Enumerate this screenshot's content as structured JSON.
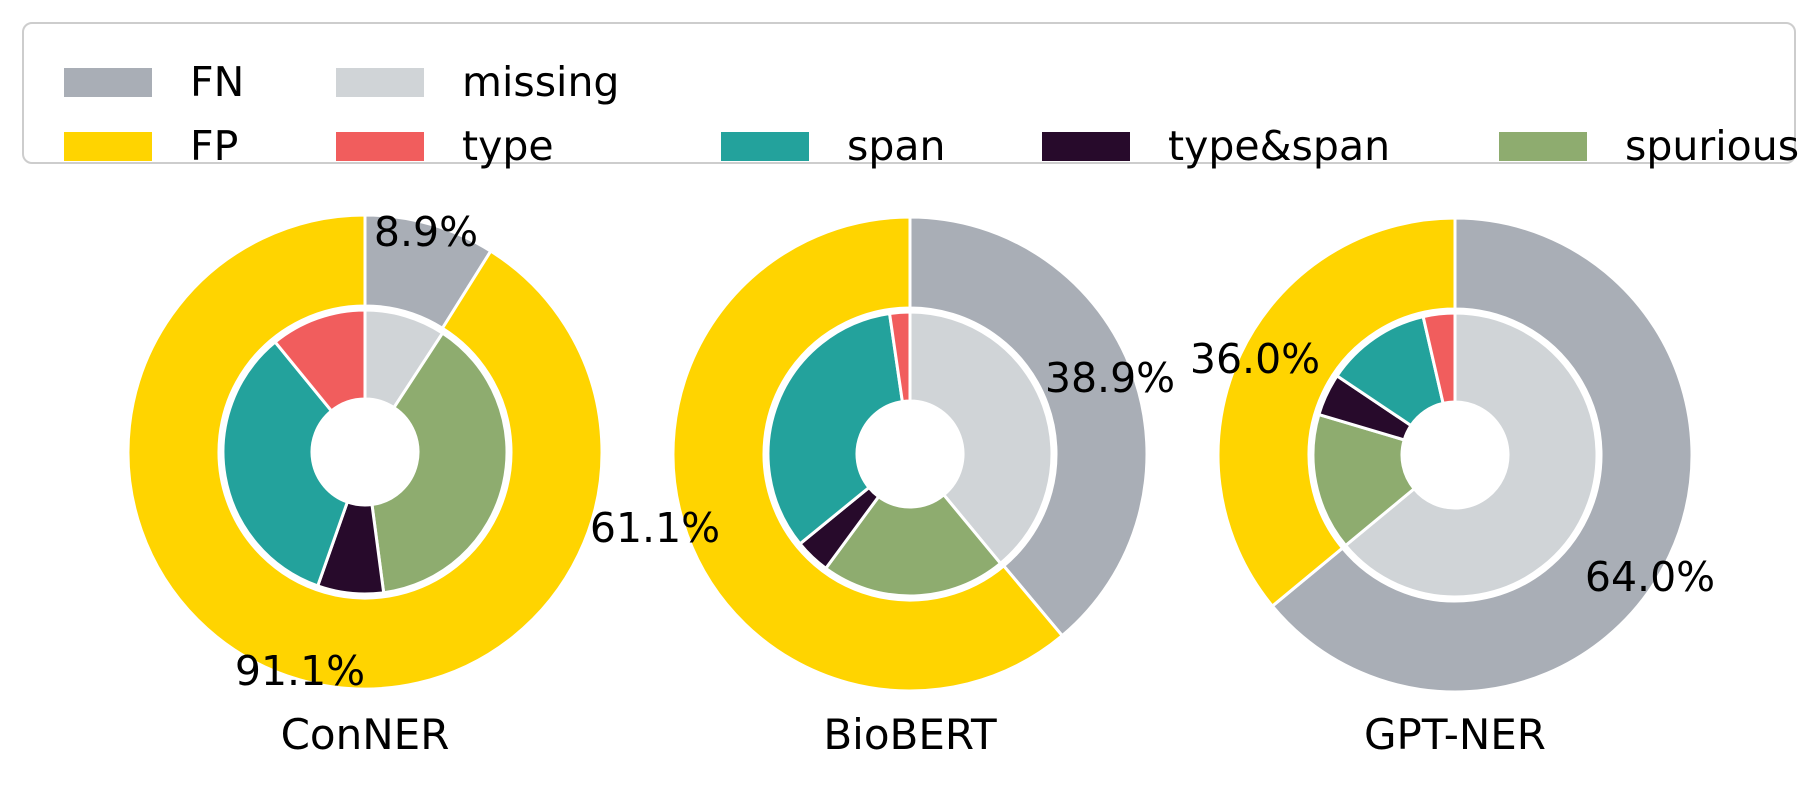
{
  "figure": {
    "background": "#ffffff"
  },
  "colors": {
    "FN": "#a9aeb6",
    "FP": "#ffd400",
    "missing": "#d0d4d7",
    "type": "#f15d5d",
    "span": "#23a29c",
    "type&span": "#270a2b",
    "spurious": "#8eac6f",
    "wedge_edge": "#ffffff",
    "legend_border": "#cdcdcd",
    "text": "#000000"
  },
  "legend": {
    "items": [
      {
        "key": "FN",
        "label": "FN"
      },
      {
        "key": "missing",
        "label": "missing"
      },
      {
        "key": "FP",
        "label": "FP"
      },
      {
        "key": "type",
        "label": "type"
      },
      {
        "key": "span",
        "label": "span"
      },
      {
        "key": "type&span",
        "label": "type&span"
      },
      {
        "key": "spurious",
        "label": "spurious"
      }
    ]
  },
  "chart_data": [
    {
      "type": "pie",
      "variant": "nested_donut",
      "title": "ConNER",
      "start_angle": "top",
      "direction": "clockwise",
      "outer_ring": [
        {
          "label": "FN",
          "value": 8.9,
          "pct_label": "8.9%"
        },
        {
          "label": "FP",
          "value": 91.1,
          "pct_label": "91.1%"
        }
      ],
      "inner_ring": [
        {
          "label": "missing",
          "value": 9.2
        },
        {
          "label": "spurious",
          "value": 38.7
        },
        {
          "label": "type&span",
          "value": 7.5
        },
        {
          "label": "span",
          "value": 33.7
        },
        {
          "label": "type",
          "value": 10.9
        }
      ]
    },
    {
      "type": "pie",
      "variant": "nested_donut",
      "title": "BioBERT",
      "start_angle": "top",
      "direction": "clockwise",
      "outer_ring": [
        {
          "label": "FN",
          "value": 38.9,
          "pct_label": "38.9%"
        },
        {
          "label": "FP",
          "value": 61.1,
          "pct_label": "61.1%"
        }
      ],
      "inner_ring": [
        {
          "label": "missing",
          "value": 39.0
        },
        {
          "label": "spurious",
          "value": 21.1
        },
        {
          "label": "type&span",
          "value": 4.0
        },
        {
          "label": "span",
          "value": 33.6
        },
        {
          "label": "type",
          "value": 2.3
        }
      ]
    },
    {
      "type": "pie",
      "variant": "nested_donut",
      "title": "GPT-NER",
      "start_angle": "top",
      "direction": "clockwise",
      "outer_ring": [
        {
          "label": "FN",
          "value": 64.0,
          "pct_label": "64.0%"
        },
        {
          "label": "FP",
          "value": 36.0,
          "pct_label": "36.0%"
        }
      ],
      "inner_ring": [
        {
          "label": "missing",
          "value": 64.0
        },
        {
          "label": "spurious",
          "value": 15.6
        },
        {
          "label": "type&span",
          "value": 4.8
        },
        {
          "label": "span",
          "value": 12.0
        },
        {
          "label": "type",
          "value": 3.6
        }
      ]
    }
  ]
}
